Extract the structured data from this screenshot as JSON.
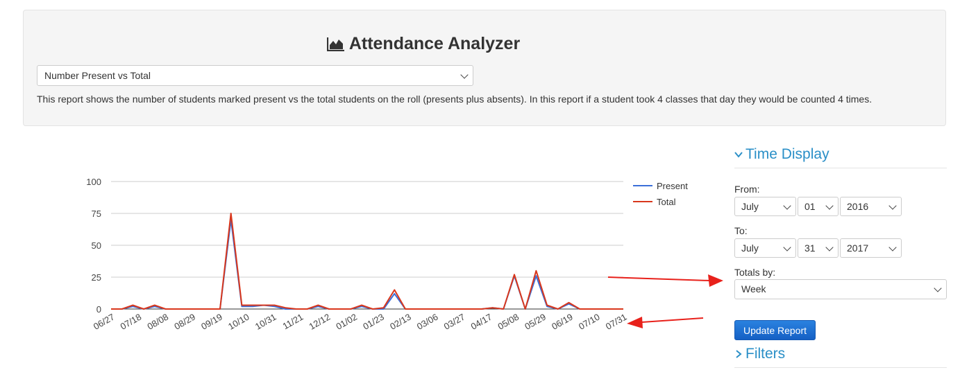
{
  "header": {
    "title": "Attendance Analyzer",
    "title_icon": "area-chart-icon",
    "report_type": "Number Present vs Total",
    "description": "This report shows the number of students marked present vs the total students on the roll (presents plus absents). In this report if a student took 4 classes that day they would be counted 4 times."
  },
  "sidebar": {
    "time_display": {
      "heading": "Time Display",
      "from_label": "From:",
      "from_month": "July",
      "from_day": "01",
      "from_year": "2016",
      "to_label": "To:",
      "to_month": "July",
      "to_day": "31",
      "to_year": "2017",
      "totals_label": "Totals by:",
      "totals_value": "Week"
    },
    "update_button": "Update Report",
    "filters_heading": "Filters"
  },
  "colors": {
    "present": "#3a6fd8",
    "total": "#d9371c",
    "accent": "#2a8fc7",
    "annotation": "#e8211b"
  },
  "chart_data": {
    "type": "line",
    "ylim": [
      0,
      100
    ],
    "yticks": [
      0,
      25,
      50,
      75,
      100
    ],
    "tick_labels": [
      "06/27",
      "07/18",
      "08/08",
      "08/29",
      "09/19",
      "10/10",
      "10/31",
      "11/21",
      "12/12",
      "01/02",
      "01/23",
      "02/13",
      "03/06",
      "03/27",
      "04/17",
      "05/08",
      "05/29",
      "06/19",
      "07/10",
      "07/31"
    ],
    "legend_position": "top-right",
    "series": [
      {
        "name": "Present",
        "values": [
          0,
          0,
          2,
          0,
          2,
          0,
          0,
          0,
          0,
          0,
          0,
          70,
          2,
          2,
          3,
          2,
          0,
          0,
          0,
          2,
          0,
          0,
          0,
          2,
          0,
          0,
          12,
          0,
          0,
          0,
          0,
          0,
          0,
          0,
          0,
          1,
          0,
          26,
          0,
          26,
          2,
          0,
          4,
          0,
          0,
          0,
          0,
          0
        ]
      },
      {
        "name": "Total",
        "values": [
          0,
          0,
          3,
          0,
          3,
          0,
          0,
          0,
          0,
          0,
          0,
          75,
          3,
          3,
          3,
          3,
          1,
          0,
          0,
          3,
          0,
          0,
          0,
          3,
          0,
          1,
          15,
          0,
          0,
          0,
          0,
          0,
          0,
          0,
          0,
          1,
          0,
          27,
          0,
          30,
          3,
          0,
          5,
          0,
          0,
          0,
          0,
          0
        ]
      }
    ]
  }
}
